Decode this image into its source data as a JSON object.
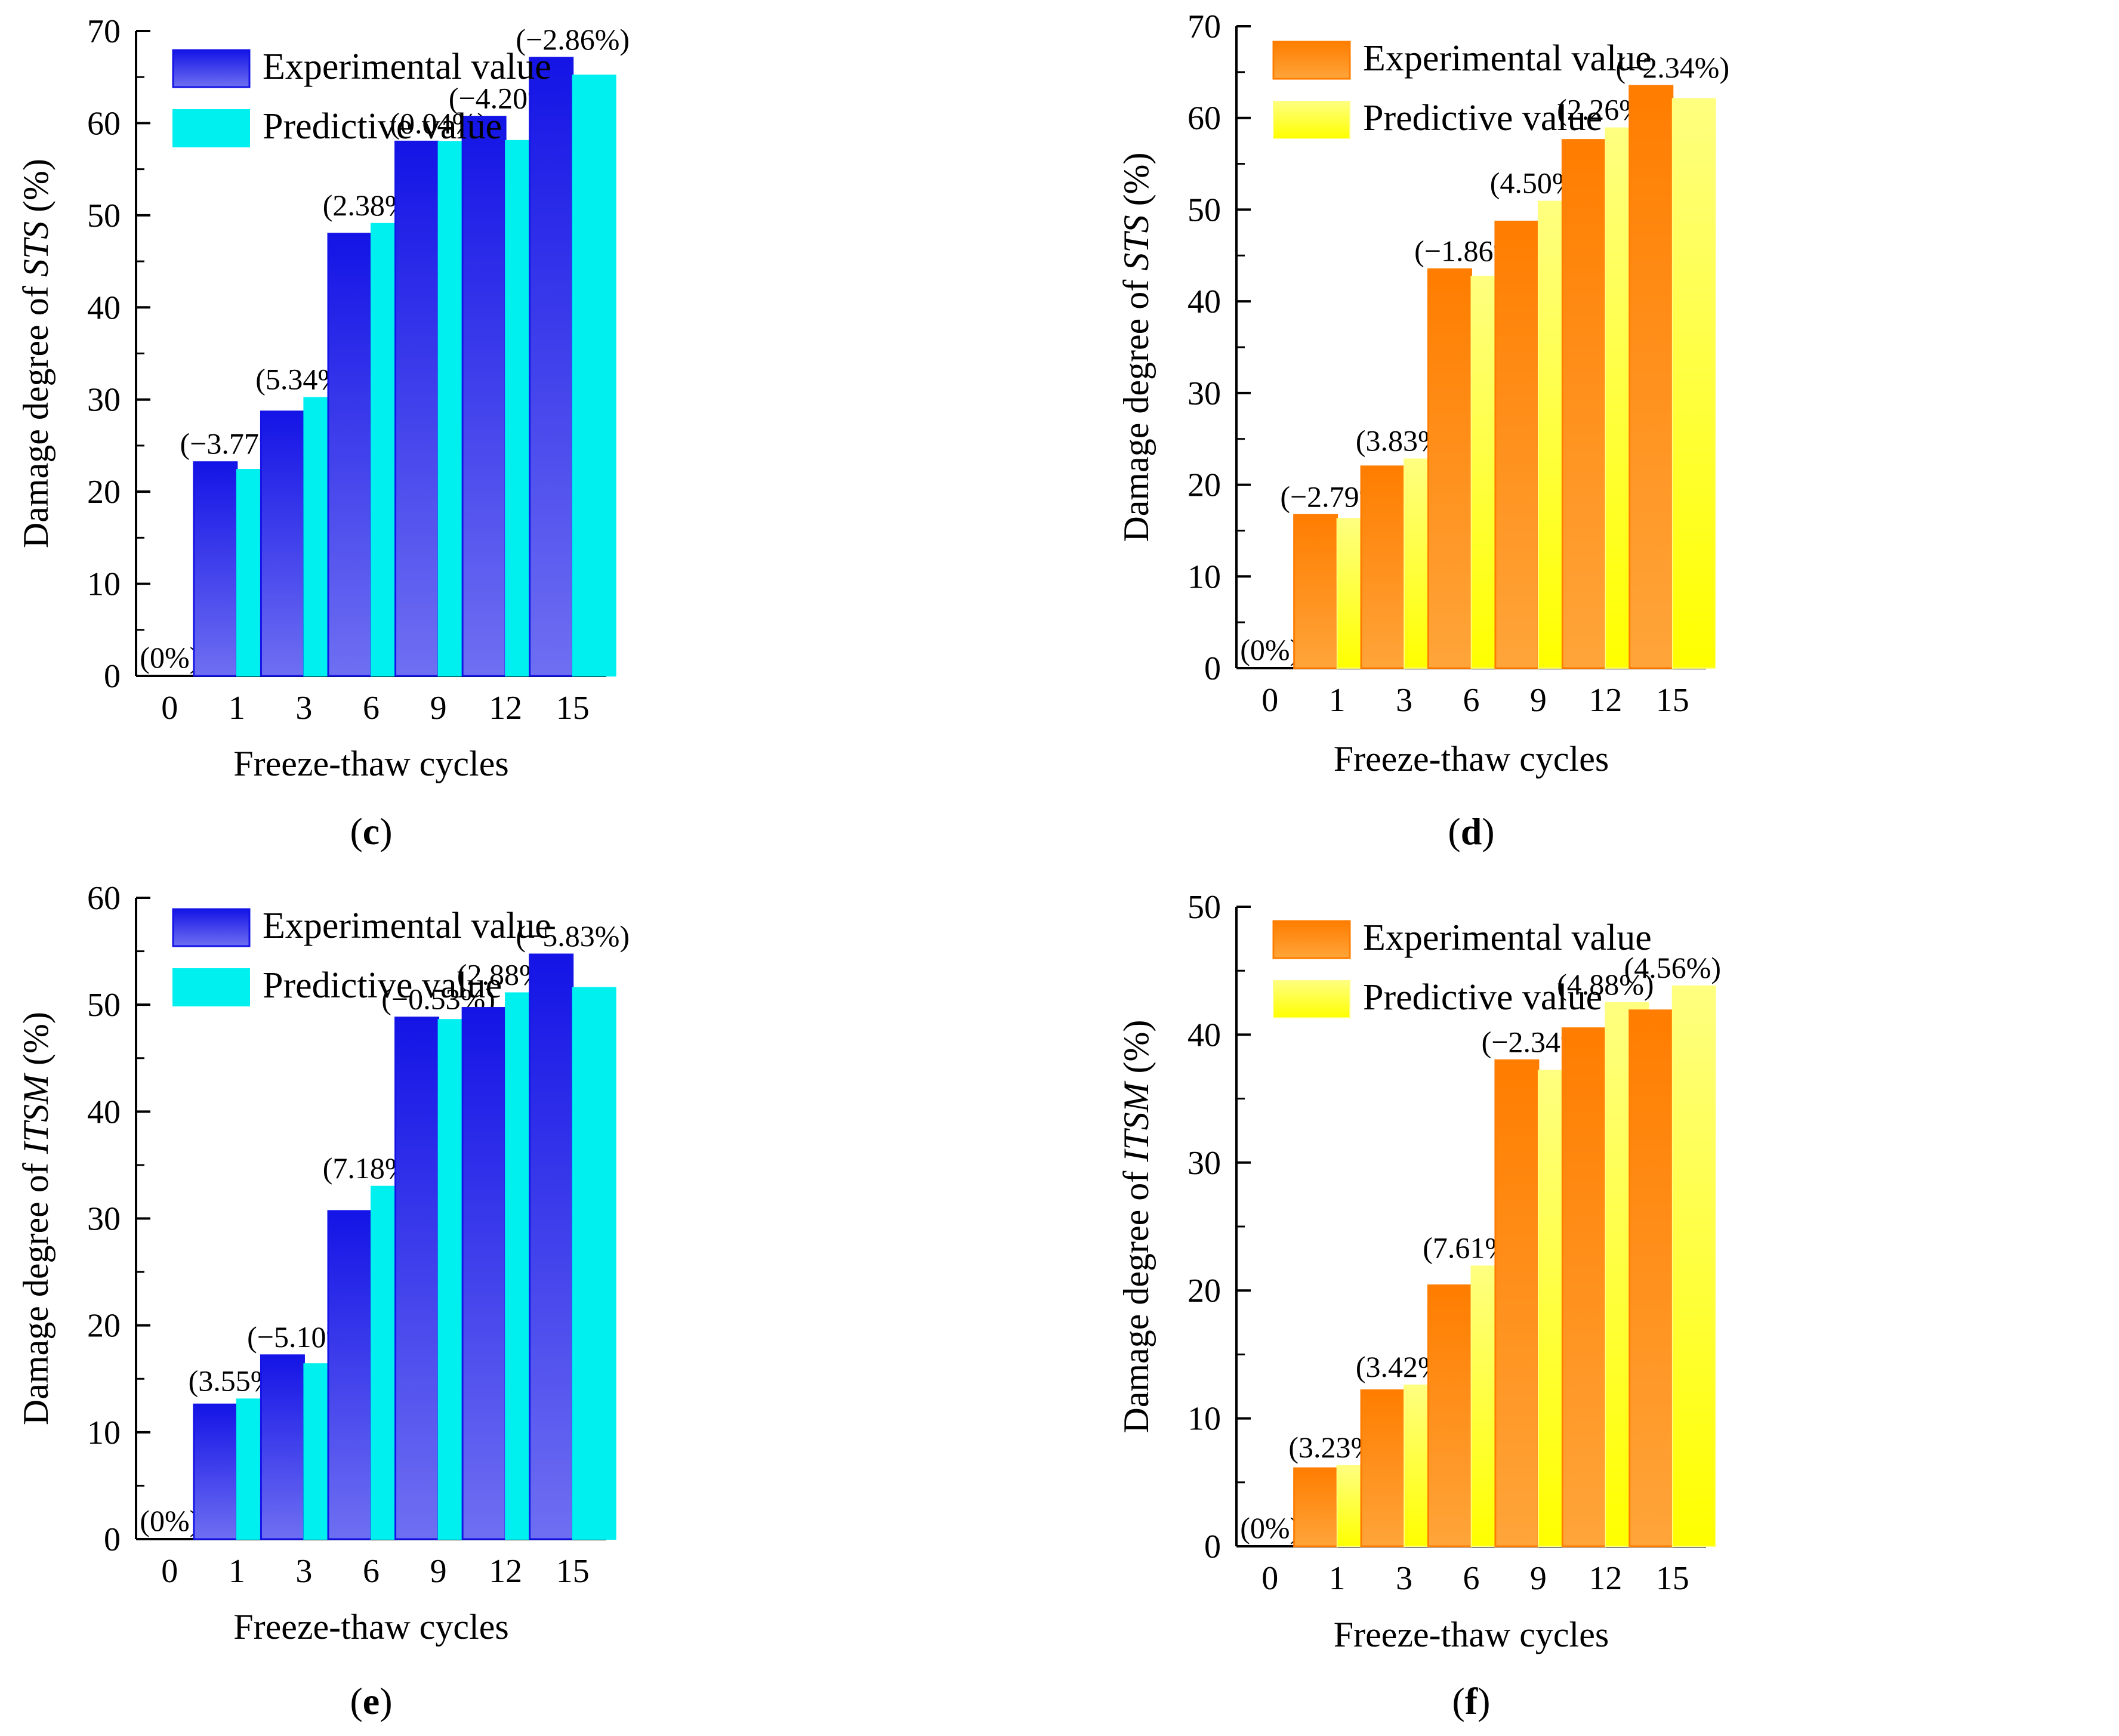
{
  "xlabel": "Freeze-thaw cycles",
  "categories": [
    "0",
    "1",
    "3",
    "6",
    "9",
    "12",
    "15"
  ],
  "legend": {
    "experimental": "Experimental value",
    "predictive": "Predictive value"
  },
  "colors": {
    "blue_top": "#1414e6",
    "blue_bottom": "#6f6ff2",
    "cyan": "#00f0f0",
    "orange_top": "#ff7d00",
    "orange_bottom": "#ffa53a",
    "yellow_top": "#ffff80",
    "yellow_bottom": "#ffff00"
  },
  "chart_data": [
    {
      "type": "bar",
      "panel": "c",
      "caption_open": "(",
      "caption_letter": "c",
      "caption_close": ")",
      "scheme": "blue",
      "ylabel_prefix": "Damage degree of ",
      "ylabel_italic": "STS",
      "ylabel_suffix": " (%)",
      "ylim": [
        0,
        70
      ],
      "yticks": [
        0,
        10,
        20,
        30,
        40,
        50,
        60,
        70
      ],
      "categories": [
        "0",
        "1",
        "3",
        "6",
        "9",
        "12",
        "15"
      ],
      "series": [
        {
          "name": "Experimental value",
          "values": [
            0,
            23.2,
            28.7,
            48.0,
            58.0,
            60.7,
            67.1
          ]
        },
        {
          "name": "Predictive value",
          "values": [
            0,
            22.4,
            30.2,
            49.1,
            58.0,
            58.1,
            65.2
          ]
        }
      ],
      "bar_labels": [
        "(0%)",
        "(−3.77%)",
        "(5.34%)",
        "(2.38%)",
        "(0.04%)",
        "(−4.20%)",
        "(−2.86%)"
      ]
    },
    {
      "type": "bar",
      "panel": "d",
      "caption_open": "(",
      "caption_letter": "d",
      "caption_close": ")",
      "scheme": "orange",
      "ylabel_prefix": "Damage degree of ",
      "ylabel_italic": "STS",
      "ylabel_suffix": " (%)",
      "ylim": [
        0,
        70
      ],
      "yticks": [
        0,
        10,
        20,
        30,
        40,
        50,
        60,
        70
      ],
      "categories": [
        "0",
        "1",
        "3",
        "6",
        "9",
        "12",
        "15"
      ],
      "series": [
        {
          "name": "Experimental value",
          "values": [
            0,
            16.7,
            22.0,
            43.5,
            48.7,
            57.6,
            63.5
          ]
        },
        {
          "name": "Predictive value",
          "values": [
            0,
            16.3,
            22.8,
            42.7,
            50.9,
            58.9,
            62.1
          ]
        }
      ],
      "bar_labels": [
        "(0%)",
        "(−2.79%)",
        "(3.83%)",
        "(−1.86%)",
        "(4.50%)",
        "(2.26%)",
        "(−2.34%)"
      ]
    },
    {
      "type": "bar",
      "panel": "e",
      "caption_open": "(",
      "caption_letter": "e",
      "caption_close": ")",
      "scheme": "blue",
      "ylabel_prefix": "Damage degree of ",
      "ylabel_italic": "ITSM",
      "ylabel_suffix": " (%)",
      "ylim": [
        0,
        60
      ],
      "yticks": [
        0,
        10,
        20,
        30,
        40,
        50,
        60
      ],
      "categories": [
        "0",
        "1",
        "3",
        "6",
        "9",
        "12",
        "15"
      ],
      "series": [
        {
          "name": "Experimental value",
          "values": [
            0,
            12.6,
            17.2,
            30.7,
            48.8,
            49.7,
            54.7
          ]
        },
        {
          "name": "Predictive value",
          "values": [
            0,
            13.1,
            16.4,
            33.0,
            48.6,
            51.1,
            51.6
          ]
        }
      ],
      "bar_labels": [
        "(0%)",
        "(3.55%)",
        "(−5.10%)",
        "(7.18%)",
        "(−0.53%)",
        "(2.88%)",
        "(−5.83%)"
      ]
    },
    {
      "type": "bar",
      "panel": "f",
      "caption_open": "(",
      "caption_letter": "f",
      "caption_close": ")",
      "scheme": "orange",
      "ylabel_prefix": "Damage degree of ",
      "ylabel_italic": "ITSM",
      "ylabel_suffix": " (%)",
      "ylim": [
        0,
        50
      ],
      "yticks": [
        0,
        10,
        20,
        30,
        40,
        50
      ],
      "categories": [
        "0",
        "1",
        "3",
        "6",
        "9",
        "12",
        "15"
      ],
      "series": [
        {
          "name": "Experimental value",
          "values": [
            0,
            6.1,
            12.2,
            20.4,
            38.0,
            40.5,
            41.9
          ]
        },
        {
          "name": "Predictive value",
          "values": [
            0,
            6.3,
            12.6,
            21.9,
            37.2,
            42.5,
            43.8
          ]
        }
      ],
      "bar_labels": [
        "(0%)",
        "(3.23%)",
        "(3.42%)",
        "(7.61%)",
        "(−2.34%)",
        "(4.88%)",
        "(4.56%)"
      ]
    }
  ]
}
